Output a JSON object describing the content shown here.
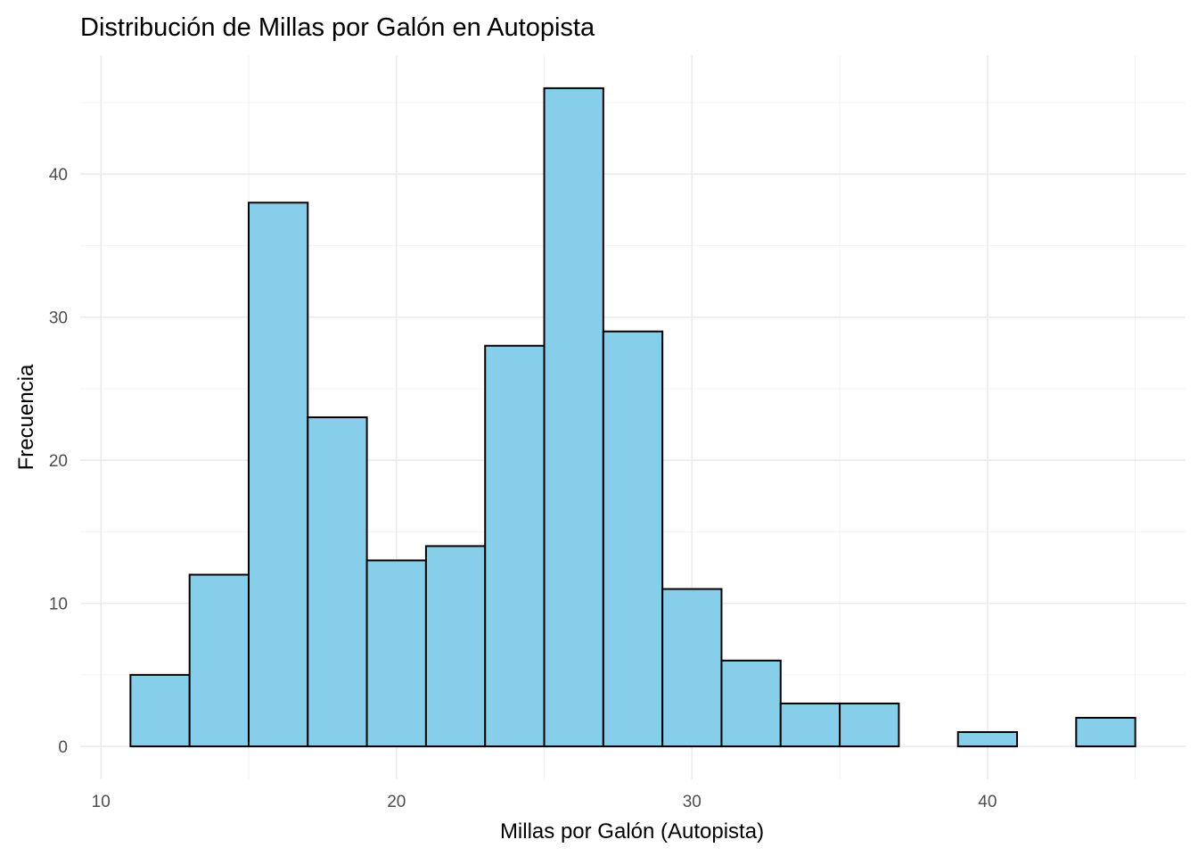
{
  "chart_data": {
    "type": "bar",
    "title": "Distribución de Millas por Galón en Autopista",
    "xlabel": "Millas por Galón (Autopista)",
    "ylabel": "Frecuencia",
    "bins": [
      {
        "x0": 11,
        "x1": 13,
        "count": 5
      },
      {
        "x0": 13,
        "x1": 15,
        "count": 12
      },
      {
        "x0": 15,
        "x1": 17,
        "count": 38
      },
      {
        "x0": 17,
        "x1": 19,
        "count": 23
      },
      {
        "x0": 19,
        "x1": 21,
        "count": 13
      },
      {
        "x0": 21,
        "x1": 23,
        "count": 14
      },
      {
        "x0": 23,
        "x1": 25,
        "count": 28
      },
      {
        "x0": 25,
        "x1": 27,
        "count": 46
      },
      {
        "x0": 27,
        "x1": 29,
        "count": 29
      },
      {
        "x0": 29,
        "x1": 31,
        "count": 11
      },
      {
        "x0": 31,
        "x1": 33,
        "count": 6
      },
      {
        "x0": 33,
        "x1": 35,
        "count": 3
      },
      {
        "x0": 35,
        "x1": 37,
        "count": 3
      },
      {
        "x0": 37,
        "x1": 39,
        "count": 0
      },
      {
        "x0": 39,
        "x1": 41,
        "count": 1
      },
      {
        "x0": 41,
        "x1": 43,
        "count": 0
      },
      {
        "x0": 43,
        "x1": 45,
        "count": 2
      }
    ],
    "xlim": [
      9.3,
      46.7
    ],
    "ylim": [
      -2.3,
      48.3
    ],
    "x_ticks": [
      10,
      20,
      30,
      40
    ],
    "x_tick_labels": [
      "10",
      "20",
      "30",
      "40"
    ],
    "y_ticks": [
      0,
      10,
      20,
      30,
      40
    ],
    "y_tick_labels": [
      "0",
      "10",
      "20",
      "30",
      "40"
    ],
    "fill_color": "#87ceeb",
    "outline_color": "#000000",
    "grid": true,
    "legend": "none"
  }
}
